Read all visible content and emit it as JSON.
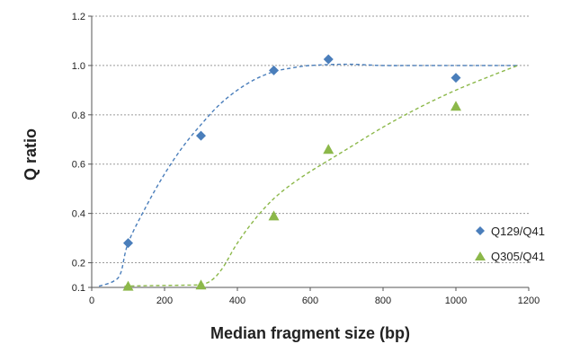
{
  "chart_data": {
    "type": "scatter",
    "title": "",
    "xlabel": "Median fragment size (bp)",
    "ylabel": "Q ratio",
    "xlim": [
      0,
      1200
    ],
    "ylim": [
      0.1,
      1.2
    ],
    "x_ticks": [
      0,
      200,
      400,
      600,
      800,
      1000,
      1200
    ],
    "y_ticks": [
      0.1,
      0.2,
      0.4,
      0.6,
      0.8,
      1.0,
      1.2
    ],
    "x_tick_labels": [
      "0",
      "200",
      "400",
      "600",
      "800",
      "1000",
      "1200"
    ],
    "y_tick_labels": [
      "0.1",
      "0.2",
      "0.4",
      "0.6",
      "0.8",
      "1.0",
      "1.2"
    ],
    "grid": "horizontal dotted",
    "legend_position": "bottom-right",
    "series": [
      {
        "name": "Q129/Q41",
        "marker": "diamond",
        "color": "#4a7ebb",
        "x": [
          100,
          300,
          500,
          650,
          1000
        ],
        "y": [
          0.28,
          0.715,
          0.98,
          1.025,
          0.95
        ],
        "fit": {
          "style": "dashed",
          "x": [
            20,
            60,
            80,
            100,
            150,
            200,
            250,
            300,
            350,
            400,
            450,
            500,
            550,
            600,
            700,
            800,
            900,
            1000,
            1100,
            1170
          ],
          "y": [
            0.105,
            0.125,
            0.16,
            0.28,
            0.43,
            0.56,
            0.67,
            0.76,
            0.84,
            0.9,
            0.945,
            0.975,
            0.99,
            1.0,
            1.005,
            1.0,
            1.0,
            1.0,
            1.0,
            1.0
          ]
        }
      },
      {
        "name": "Q305/Q41",
        "marker": "triangle",
        "color": "#8cb84a",
        "x": [
          100,
          300,
          500,
          650,
          1000
        ],
        "y": [
          0.105,
          0.11,
          0.39,
          0.66,
          0.835
        ],
        "fit": {
          "style": "dashed",
          "x": [
            90,
            150,
            200,
            250,
            300,
            330,
            360,
            400,
            450,
            500,
            550,
            600,
            650,
            700,
            800,
            900,
            1000,
            1100,
            1170
          ],
          "y": [
            0.105,
            0.107,
            0.108,
            0.109,
            0.112,
            0.13,
            0.18,
            0.28,
            0.38,
            0.46,
            0.52,
            0.57,
            0.615,
            0.66,
            0.75,
            0.83,
            0.9,
            0.96,
            1.0
          ]
        }
      }
    ]
  }
}
